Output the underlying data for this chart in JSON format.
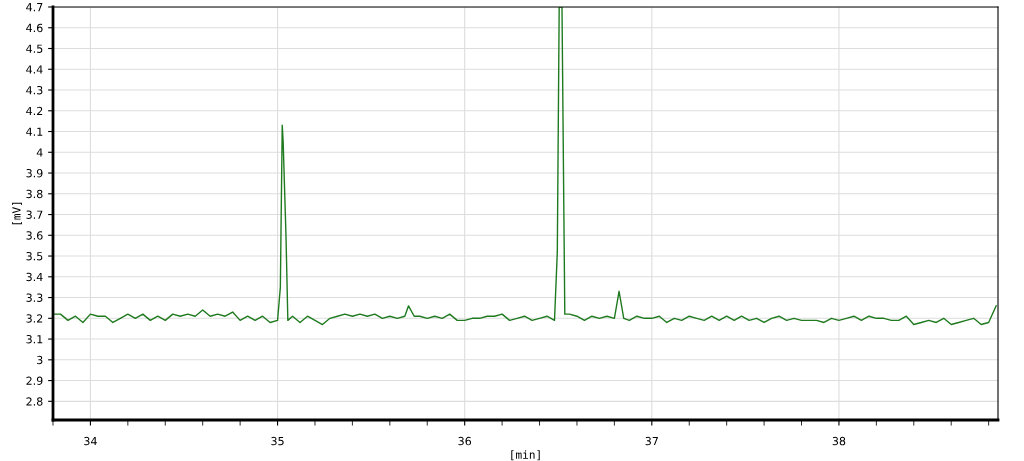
{
  "chart_data": {
    "type": "line",
    "xlabel": "[min]",
    "ylabel": "[mV]",
    "xlim": [
      33.8,
      38.85
    ],
    "ylim": [
      2.71,
      4.7
    ],
    "xticks": [
      34,
      35,
      36,
      37,
      38
    ],
    "yticks": [
      2.8,
      2.9,
      3,
      3.1,
      3.2,
      3.3,
      3.4,
      3.5,
      3.6,
      3.7,
      3.8,
      3.9,
      4,
      4.1,
      4.2,
      4.3,
      4.4,
      4.5,
      4.6,
      4.7
    ],
    "grid": true,
    "marker": "none",
    "line_style": "solid",
    "series": [
      {
        "color": "#1f7a1f",
        "x": [
          33.8,
          33.84,
          33.88,
          33.92,
          33.96,
          34.0,
          34.04,
          34.08,
          34.12,
          34.16,
          34.2,
          34.24,
          34.28,
          34.32,
          34.36,
          34.4,
          34.44,
          34.48,
          34.52,
          34.56,
          34.6,
          34.64,
          34.68,
          34.72,
          34.76,
          34.8,
          34.84,
          34.88,
          34.92,
          34.96,
          35.0,
          35.015,
          35.025,
          35.03,
          35.045,
          35.055,
          35.08,
          35.12,
          35.16,
          35.2,
          35.24,
          35.28,
          35.32,
          35.36,
          35.4,
          35.44,
          35.48,
          35.52,
          35.56,
          35.6,
          35.64,
          35.68,
          35.7,
          35.73,
          35.76,
          35.8,
          35.84,
          35.88,
          35.92,
          35.96,
          36.0,
          36.04,
          36.08,
          36.12,
          36.16,
          36.2,
          36.24,
          36.28,
          36.32,
          36.36,
          36.4,
          36.44,
          36.48,
          36.495,
          36.505,
          36.52,
          36.535,
          36.56,
          36.6,
          36.64,
          36.68,
          36.72,
          36.76,
          36.8,
          36.825,
          36.85,
          36.88,
          36.92,
          36.96,
          37.0,
          37.04,
          37.08,
          37.12,
          37.16,
          37.2,
          37.24,
          37.28,
          37.32,
          37.36,
          37.4,
          37.44,
          37.48,
          37.52,
          37.56,
          37.6,
          37.64,
          37.68,
          37.72,
          37.76,
          37.8,
          37.84,
          37.88,
          37.92,
          37.96,
          38.0,
          38.04,
          38.08,
          38.12,
          38.16,
          38.2,
          38.24,
          38.28,
          38.32,
          38.36,
          38.4,
          38.44,
          38.48,
          38.52,
          38.56,
          38.6,
          38.64,
          38.68,
          38.72,
          38.76,
          38.8,
          38.84
        ],
        "values": [
          3.22,
          3.22,
          3.19,
          3.21,
          3.18,
          3.22,
          3.21,
          3.21,
          3.18,
          3.2,
          3.22,
          3.2,
          3.22,
          3.19,
          3.21,
          3.19,
          3.22,
          3.21,
          3.22,
          3.21,
          3.24,
          3.21,
          3.22,
          3.21,
          3.23,
          3.19,
          3.21,
          3.19,
          3.21,
          3.18,
          3.19,
          3.35,
          4.13,
          4.05,
          3.6,
          3.19,
          3.21,
          3.18,
          3.21,
          3.19,
          3.17,
          3.2,
          3.21,
          3.22,
          3.21,
          3.22,
          3.21,
          3.22,
          3.2,
          3.21,
          3.2,
          3.21,
          3.26,
          3.21,
          3.21,
          3.2,
          3.21,
          3.2,
          3.22,
          3.19,
          3.19,
          3.2,
          3.2,
          3.21,
          3.21,
          3.22,
          3.19,
          3.2,
          3.21,
          3.19,
          3.2,
          3.21,
          3.19,
          3.52,
          4.7,
          4.7,
          3.22,
          3.22,
          3.21,
          3.19,
          3.21,
          3.2,
          3.21,
          3.2,
          3.33,
          3.2,
          3.19,
          3.21,
          3.2,
          3.2,
          3.21,
          3.18,
          3.2,
          3.19,
          3.21,
          3.2,
          3.19,
          3.21,
          3.19,
          3.21,
          3.19,
          3.21,
          3.19,
          3.2,
          3.18,
          3.2,
          3.21,
          3.19,
          3.2,
          3.19,
          3.19,
          3.19,
          3.18,
          3.2,
          3.19,
          3.2,
          3.21,
          3.19,
          3.21,
          3.2,
          3.2,
          3.19,
          3.19,
          3.21,
          3.17,
          3.18,
          3.19,
          3.18,
          3.2,
          3.17,
          3.18,
          3.19,
          3.2,
          3.17,
          3.18,
          3.26
        ]
      }
    ]
  }
}
